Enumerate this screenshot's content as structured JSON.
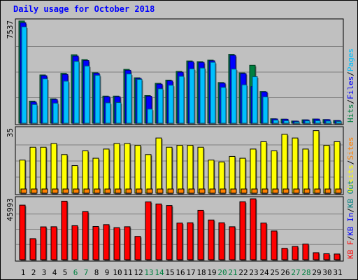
{
  "title": "Daily usage for October 2018",
  "colors": {
    "background": "#c0c0c0",
    "panel": "#c0c0c0",
    "hits": "#008040",
    "files": "#0000ff",
    "pages": "#00c0ff",
    "visits": "#ffff00",
    "sites": "#ff8000",
    "kb_f": "#ff0000",
    "kb_in": "#0000ff",
    "kb_out": "#008080",
    "title": "#0000ff",
    "weekday_label": "#000000",
    "weekend_label": "#008040"
  },
  "chart_data": [
    {
      "type": "bar",
      "panel": "hits-files-pages",
      "y_max_label": "7537",
      "ylim": [
        0,
        7537
      ],
      "legend": [
        {
          "label": "Hits",
          "color": "#008040"
        },
        {
          "label": "/",
          "color": "#000000"
        },
        {
          "label": "Files",
          "color": "#0000ff"
        },
        {
          "label": "/",
          "color": "#000000"
        },
        {
          "label": "Pages",
          "color": "#00c0ff"
        }
      ],
      "categories": [
        "1",
        "2",
        "3",
        "4",
        "5",
        "6",
        "7",
        "8",
        "9",
        "10",
        "11",
        "12",
        "13",
        "14",
        "15",
        "16",
        "17",
        "18",
        "19",
        "20",
        "21",
        "22",
        "23",
        "24",
        "25",
        "26",
        "27",
        "28",
        "29",
        "30",
        "31"
      ],
      "series": [
        {
          "name": "Hits",
          "values": [
            7537,
            1630,
            3560,
            1800,
            3680,
            5050,
            4690,
            3720,
            2000,
            2000,
            3970,
            3350,
            2040,
            2940,
            3180,
            3820,
            4590,
            4540,
            4650,
            3000,
            5080,
            3710,
            4270,
            2340,
            330,
            300,
            160,
            250,
            310,
            270,
            200
          ]
        },
        {
          "name": "Files",
          "values": [
            7400,
            1560,
            3500,
            1750,
            3600,
            4950,
            4620,
            3680,
            1950,
            1950,
            3900,
            3300,
            1990,
            2880,
            3120,
            3760,
            4530,
            4480,
            4600,
            2950,
            5000,
            3660,
            2700,
            2300,
            310,
            290,
            150,
            240,
            300,
            260,
            190
          ]
        },
        {
          "name": "Pages",
          "values": [
            7100,
            1380,
            3270,
            1480,
            3100,
            4560,
            4220,
            3530,
            1500,
            1520,
            3630,
            3230,
            1040,
            2540,
            2800,
            3460,
            4010,
            4070,
            4490,
            2640,
            3990,
            2830,
            3430,
            1940,
            230,
            180,
            100,
            170,
            180,
            160,
            130
          ]
        }
      ]
    },
    {
      "type": "bar",
      "panel": "visits-sites",
      "y_max_label": "35",
      "ylim": [
        0,
        35
      ],
      "legend": [
        {
          "label": "Visits",
          "color": "#ffff00"
        },
        {
          "label": "/",
          "color": "#000000"
        },
        {
          "label": "Sites",
          "color": "#ff8000"
        }
      ],
      "categories": [
        "1",
        "2",
        "3",
        "4",
        "5",
        "6",
        "7",
        "8",
        "9",
        "10",
        "11",
        "12",
        "13",
        "14",
        "15",
        "16",
        "17",
        "18",
        "19",
        "20",
        "21",
        "22",
        "23",
        "24",
        "25",
        "26",
        "27",
        "28",
        "29",
        "30",
        "31"
      ],
      "series": [
        {
          "name": "Visits",
          "values": [
            18,
            25,
            25,
            27,
            21,
            15,
            23,
            19,
            24,
            27,
            27,
            26,
            21,
            30,
            25,
            26,
            26,
            25,
            18,
            17,
            20,
            19,
            24,
            28,
            23,
            32,
            30,
            24,
            34,
            26,
            28
          ]
        },
        {
          "name": "Sites",
          "values": [
            2,
            2,
            2,
            2,
            2,
            2,
            2,
            2,
            2,
            2,
            2,
            2,
            2,
            2,
            2,
            2,
            2,
            2,
            2,
            2,
            2,
            2,
            2,
            2,
            2,
            2,
            2,
            2,
            2,
            2,
            2
          ]
        }
      ]
    },
    {
      "type": "bar",
      "panel": "kbytes",
      "y_max_label": "45993",
      "ylim": [
        0,
        45993
      ],
      "legend": [
        {
          "label": "KB F",
          "color": "#ff0000"
        },
        {
          "label": "/",
          "color": "#000000"
        },
        {
          "label": "KB In",
          "color": "#0000ff"
        },
        {
          "label": "/",
          "color": "#000000"
        },
        {
          "label": "KB Out",
          "color": "#008080"
        }
      ],
      "categories": [
        "1",
        "2",
        "3",
        "4",
        "5",
        "6",
        "7",
        "8",
        "9",
        "10",
        "11",
        "12",
        "13",
        "14",
        "15",
        "16",
        "17",
        "18",
        "19",
        "20",
        "21",
        "22",
        "23",
        "24",
        "25",
        "26",
        "27",
        "28",
        "29",
        "30",
        "31"
      ],
      "series": [
        {
          "name": "KB F",
          "values": [
            41200,
            15900,
            24800,
            24900,
            44200,
            25700,
            36300,
            25100,
            26500,
            24200,
            24900,
            17600,
            43700,
            42100,
            40900,
            27700,
            27900,
            37300,
            30000,
            27900,
            24900,
            43800,
            45993,
            27700,
            21700,
            8600,
            10000,
            11800,
            5300,
            4500,
            4300
          ]
        }
      ]
    }
  ],
  "x_labels": {
    "days": [
      "1",
      "2",
      "3",
      "4",
      "5",
      "6",
      "7",
      "8",
      "9",
      "10",
      "11",
      "12",
      "13",
      "14",
      "15",
      "16",
      "17",
      "18",
      "19",
      "20",
      "21",
      "22",
      "23",
      "24",
      "25",
      "26",
      "27",
      "28",
      "29",
      "30",
      "31"
    ],
    "weekend_days": [
      "6",
      "7",
      "13",
      "14",
      "20",
      "21",
      "27",
      "28"
    ]
  }
}
